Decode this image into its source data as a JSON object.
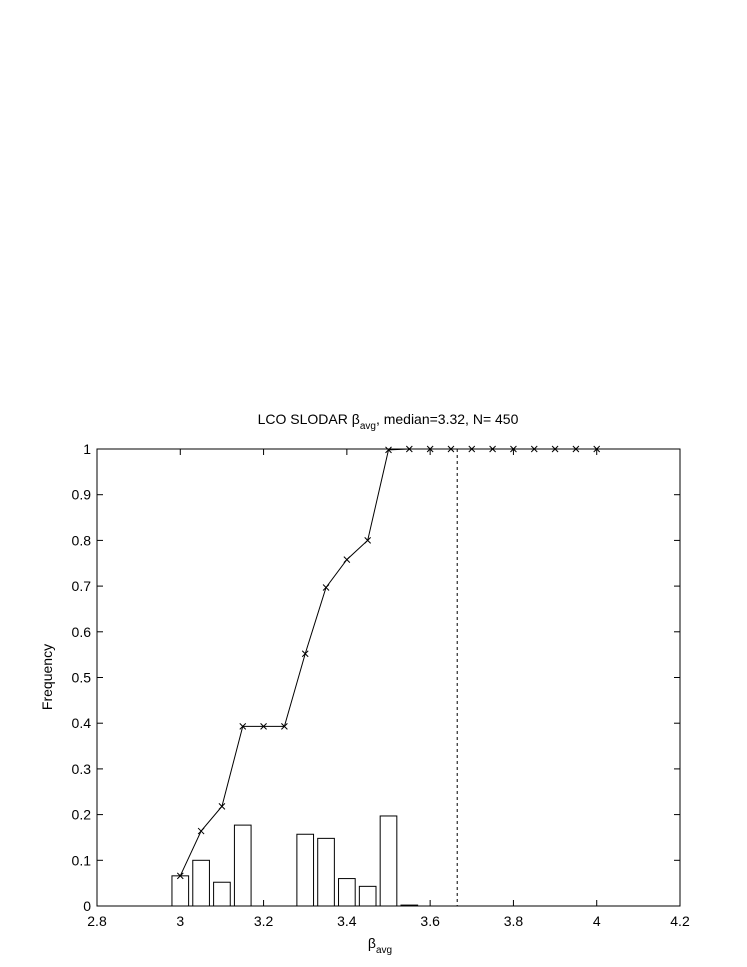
{
  "chart_data": {
    "type": "bar",
    "title_prefix": "LCO SLODAR β",
    "title_sub": "avg",
    "title_suffix": ", median=3.32, N= 450",
    "xlabel": "β",
    "xlabel_sub": "avg",
    "ylabel": "Frequency",
    "x": [
      3.0,
      3.05,
      3.1,
      3.15,
      3.2,
      3.25,
      3.3,
      3.35,
      3.4,
      3.45,
      3.5,
      3.55,
      3.6,
      3.65,
      3.7,
      3.75,
      3.8,
      3.85,
      3.9,
      3.95,
      4.0
    ],
    "bar_width": 0.04,
    "series": [
      {
        "type": "bar",
        "color": "#ffffff",
        "values": [
          0.066,
          0.1,
          0.052,
          0.177,
          0,
          0,
          0.157,
          0.148,
          0.06,
          0.043,
          0.197,
          0.002,
          0,
          0,
          0,
          0,
          0,
          0,
          0,
          0,
          0
        ]
      },
      {
        "type": "line",
        "color": "#000000",
        "marker": "x",
        "values": [
          0.066,
          0.164,
          0.218,
          0.393,
          0.393,
          0.393,
          0.552,
          0.697,
          0.758,
          0.8,
          0.998,
          1,
          1,
          1,
          1,
          1,
          1,
          1,
          1,
          1,
          1
        ]
      }
    ],
    "vline": 3.665,
    "xlim": [
      2.8,
      4.2
    ],
    "xticks": [
      2.8,
      3,
      3.2,
      3.4,
      3.6,
      3.8,
      4,
      4.2
    ],
    "ylim": [
      0,
      1
    ],
    "yticks": [
      0,
      0.1,
      0.2,
      0.3,
      0.4,
      0.5,
      0.6,
      0.7,
      0.8,
      0.9,
      1
    ],
    "grid": false
  }
}
